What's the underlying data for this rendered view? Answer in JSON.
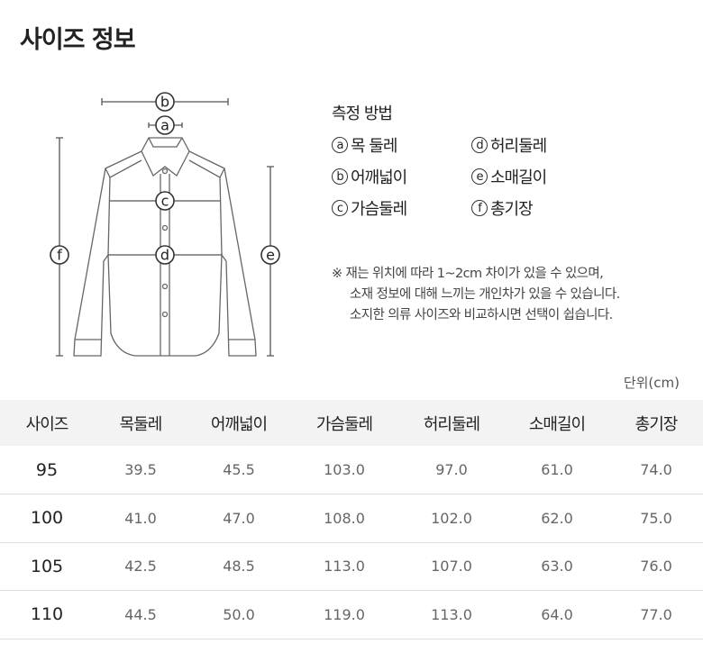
{
  "title": "사이즈 정보",
  "method": {
    "heading": "측정 방법",
    "items": [
      {
        "letter": "a",
        "label": "목 둘레"
      },
      {
        "letter": "d",
        "label": "허리둘레"
      },
      {
        "letter": "b",
        "label": "어깨넓이"
      },
      {
        "letter": "e",
        "label": "소매길이"
      },
      {
        "letter": "c",
        "label": "가슴둘레"
      },
      {
        "letter": "f",
        "label": "총기장"
      }
    ]
  },
  "diagram": {
    "labels": [
      "a",
      "b",
      "c",
      "d",
      "e",
      "f"
    ]
  },
  "note": [
    "※ 재는 위치에 따라 1~2cm 차이가 있을 수 있으며,",
    "소재 정보에 대해 느끼는 개인차가 있을 수 있습니다.",
    "소지한 의류 사이즈와 비교하시면 선택이 쉽습니다."
  ],
  "unit": "단위(cm)",
  "table": {
    "headers": [
      "사이즈",
      "목둘레",
      "어깨넓이",
      "가슴둘레",
      "허리둘레",
      "소매길이",
      "총기장"
    ],
    "rows": [
      [
        "95",
        "39.5",
        "45.5",
        "103.0",
        "97.0",
        "61.0",
        "74.0"
      ],
      [
        "100",
        "41.0",
        "47.0",
        "108.0",
        "102.0",
        "62.0",
        "75.0"
      ],
      [
        "105",
        "42.5",
        "48.5",
        "113.0",
        "107.0",
        "63.0",
        "76.0"
      ],
      [
        "110",
        "44.5",
        "50.0",
        "119.0",
        "113.0",
        "64.0",
        "77.0"
      ]
    ]
  }
}
